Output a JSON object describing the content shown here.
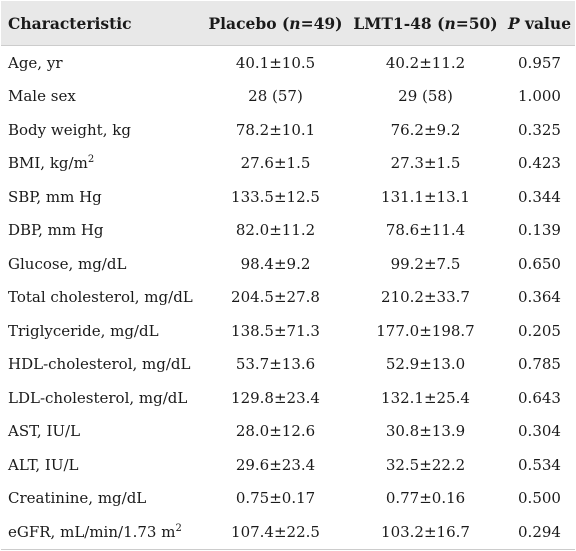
{
  "header": {
    "characteristic": "Characteristic",
    "placebo_label": "Placebo (",
    "placebo_n": "n",
    "placebo_count": "=49)",
    "lmt_label": "LMT1-48 (",
    "lmt_n": "n",
    "lmt_count": "=50)",
    "p_letter": "P",
    "p_rest": " value"
  },
  "rows": [
    {
      "label": "Age, yr",
      "sup": "",
      "label_tail": "",
      "placebo": "40.1±10.5",
      "lmt": "40.2±11.2",
      "p": "0.957"
    },
    {
      "label": "Male sex",
      "sup": "",
      "label_tail": "",
      "placebo": "28 (57)",
      "lmt": "29 (58)",
      "p": "1.000"
    },
    {
      "label": "Body weight, kg",
      "sup": "",
      "label_tail": "",
      "placebo": "78.2±10.1",
      "lmt": "76.2±9.2",
      "p": "0.325"
    },
    {
      "label": "BMI, kg/m",
      "sup": "2",
      "label_tail": "",
      "placebo": "27.6±1.5",
      "lmt": "27.3±1.5",
      "p": "0.423"
    },
    {
      "label": "SBP, mm Hg",
      "sup": "",
      "label_tail": "",
      "placebo": "133.5±12.5",
      "lmt": "131.1±13.1",
      "p": "0.344"
    },
    {
      "label": "DBP, mm Hg",
      "sup": "",
      "label_tail": "",
      "placebo": "82.0±11.2",
      "lmt": "78.6±11.4",
      "p": "0.139"
    },
    {
      "label": "Glucose, mg/dL",
      "sup": "",
      "label_tail": "",
      "placebo": "98.4±9.2",
      "lmt": "99.2±7.5",
      "p": "0.650"
    },
    {
      "label": "Total cholesterol, mg/dL",
      "sup": "",
      "label_tail": "",
      "placebo": "204.5±27.8",
      "lmt": "210.2±33.7",
      "p": "0.364"
    },
    {
      "label": "Triglyceride, mg/dL",
      "sup": "",
      "label_tail": "",
      "placebo": "138.5±71.3",
      "lmt": "177.0±198.7",
      "p": "0.205"
    },
    {
      "label": "HDL-cholesterol, mg/dL",
      "sup": "",
      "label_tail": "",
      "placebo": "53.7±13.6",
      "lmt": "52.9±13.0",
      "p": "0.785"
    },
    {
      "label": "LDL-cholesterol, mg/dL",
      "sup": "",
      "label_tail": "",
      "placebo": "129.8±23.4",
      "lmt": "132.1±25.4",
      "p": "0.643"
    },
    {
      "label": "AST, IU/L",
      "sup": "",
      "label_tail": "",
      "placebo": "28.0±12.6",
      "lmt": "30.8±13.9",
      "p": "0.304"
    },
    {
      "label": "ALT, IU/L",
      "sup": "",
      "label_tail": "",
      "placebo": "29.6±23.4",
      "lmt": "32.5±22.2",
      "p": "0.534"
    },
    {
      "label": "Creatinine, mg/dL",
      "sup": "",
      "label_tail": "",
      "placebo": "0.75±0.17",
      "lmt": "0.77±0.16",
      "p": "0.500"
    },
    {
      "label": "eGFR, mL/min/1.73 m",
      "sup": "2",
      "label_tail": "",
      "placebo": "107.4±22.5",
      "lmt": "103.2±16.7",
      "p": "0.294"
    }
  ]
}
